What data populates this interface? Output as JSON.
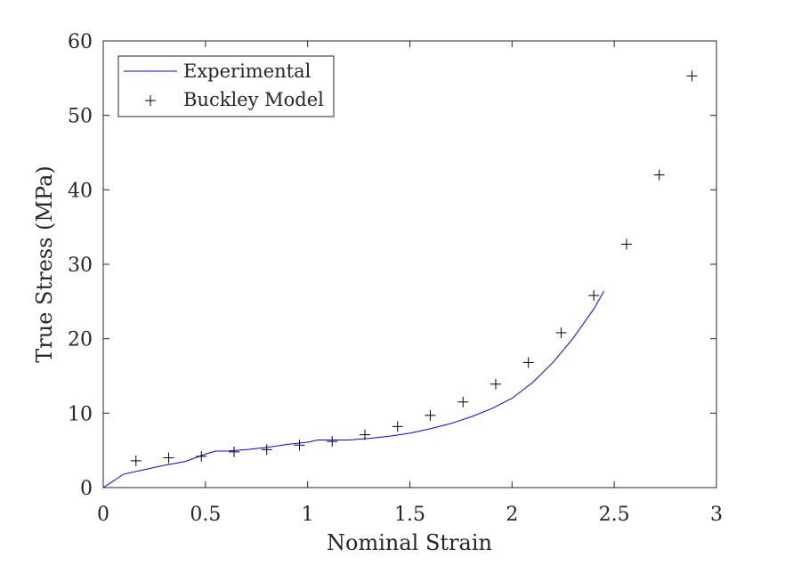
{
  "chart_data": {
    "type": "line",
    "xlabel": "Nominal Strain",
    "ylabel": "True Stress (MPa)",
    "xlim": [
      0,
      3
    ],
    "ylim": [
      0,
      60
    ],
    "xticks": [
      "0",
      "0.5",
      "1",
      "1.5",
      "2",
      "2.5",
      "3"
    ],
    "yticks": [
      "0",
      "10",
      "20",
      "30",
      "40",
      "50",
      "60"
    ],
    "grid": false,
    "legend_position": "top-left",
    "series": [
      {
        "name": "Experimental",
        "style": "line",
        "color": "#0000ff",
        "x": [
          0,
          0.1,
          0.2,
          0.3,
          0.4,
          0.5,
          0.55,
          0.6,
          0.7,
          0.8,
          0.9,
          1.0,
          1.05,
          1.1,
          1.2,
          1.3,
          1.4,
          1.5,
          1.6,
          1.7,
          1.8,
          1.9,
          2.0,
          2.1,
          2.2,
          2.3,
          2.4,
          2.45
        ],
        "y": [
          0,
          1.8,
          2.4,
          3.0,
          3.5,
          4.5,
          4.9,
          4.9,
          5.1,
          5.4,
          5.8,
          6.1,
          6.4,
          6.4,
          6.4,
          6.6,
          6.9,
          7.3,
          7.9,
          8.6,
          9.5,
          10.6,
          12.0,
          14.1,
          16.8,
          20.1,
          24.0,
          26.4
        ]
      },
      {
        "name": "Buckley Model",
        "style": "marker",
        "marker": "+",
        "color": "#000000",
        "x": [
          0.16,
          0.32,
          0.48,
          0.64,
          0.8,
          0.96,
          1.12,
          1.28,
          1.44,
          1.6,
          1.76,
          1.92,
          2.08,
          2.24,
          2.4,
          2.56,
          2.72,
          2.88
        ],
        "y": [
          3.6,
          4.0,
          4.2,
          4.8,
          5.1,
          5.7,
          6.2,
          7.1,
          8.2,
          9.7,
          11.5,
          13.9,
          16.8,
          20.8,
          25.8,
          32.7,
          42.0,
          55.3
        ]
      }
    ]
  }
}
